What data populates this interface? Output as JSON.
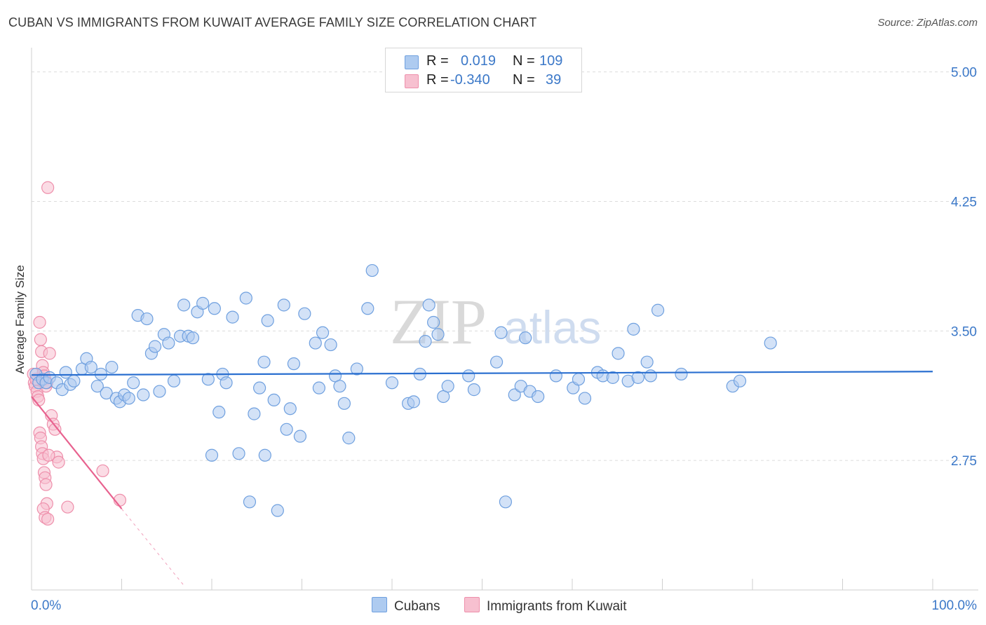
{
  "title": "CUBAN VS IMMIGRANTS FROM KUWAIT AVERAGE FAMILY SIZE CORRELATION CHART",
  "source": "Source: ZipAtlas.com",
  "watermark": {
    "zip": "ZIP",
    "atlas": "atlas"
  },
  "colors": {
    "blue_fill": "#aecbf0",
    "blue_stroke": "#6fa0df",
    "blue_line": "#2a6fd0",
    "pink_fill": "#f7c0d0",
    "pink_stroke": "#ee8fab",
    "pink_line": "#e8628f",
    "axis_text": "#3b78c8",
    "grid": "#dcdcdc"
  },
  "legend": {
    "rows": [
      {
        "r_label": "R =",
        "r_value": "0.019",
        "n_label": "N =",
        "n_value": "109"
      },
      {
        "r_label": "R =",
        "r_value": "-0.340",
        "n_label": "N =",
        "n_value": "39"
      }
    ]
  },
  "bottom_legend": {
    "cubans": "Cubans",
    "kuwait": "Immigrants from Kuwait"
  },
  "chart_data": {
    "type": "scatter",
    "title": "CUBAN VS IMMIGRANTS FROM KUWAIT AVERAGE FAMILY SIZE CORRELATION CHART",
    "xlabel": "",
    "ylabel": "Average Family Size",
    "xlim": [
      0,
      100
    ],
    "ylim": [
      2.0,
      5.1
    ],
    "x_tick_labels": {
      "left": "0.0%",
      "right": "100.0%"
    },
    "y_ticks": [
      {
        "value": 5.0,
        "label": "5.00"
      },
      {
        "value": 4.25,
        "label": "4.25"
      },
      {
        "value": 3.5,
        "label": "3.50"
      },
      {
        "value": 2.75,
        "label": "2.75"
      }
    ],
    "series": [
      {
        "name": "Cubans",
        "r": 0.019,
        "n": 109,
        "trend": {
          "x": [
            0,
            100
          ],
          "y": [
            3.245,
            3.265
          ]
        },
        "points": [
          [
            0.5,
            3.25
          ],
          [
            0.8,
            3.2
          ],
          [
            1.2,
            3.22
          ],
          [
            1.6,
            3.2
          ],
          [
            2.0,
            3.23
          ],
          [
            2.8,
            3.2
          ],
          [
            3.4,
            3.16
          ],
          [
            3.8,
            3.26
          ],
          [
            4.3,
            3.19
          ],
          [
            4.7,
            3.21
          ],
          [
            5.6,
            3.28
          ],
          [
            6.1,
            3.34
          ],
          [
            6.6,
            3.29
          ],
          [
            7.3,
            3.18
          ],
          [
            7.7,
            3.25
          ],
          [
            8.3,
            3.14
          ],
          [
            8.9,
            3.29
          ],
          [
            9.4,
            3.11
          ],
          [
            9.8,
            3.09
          ],
          [
            10.3,
            3.13
          ],
          [
            10.8,
            3.11
          ],
          [
            11.3,
            3.2
          ],
          [
            11.8,
            3.59
          ],
          [
            12.4,
            3.13
          ],
          [
            12.8,
            3.57
          ],
          [
            13.3,
            3.37
          ],
          [
            13.7,
            3.41
          ],
          [
            14.2,
            3.15
          ],
          [
            14.7,
            3.48
          ],
          [
            15.2,
            3.43
          ],
          [
            15.8,
            3.21
          ],
          [
            16.5,
            3.47
          ],
          [
            16.9,
            3.65
          ],
          [
            17.4,
            3.47
          ],
          [
            17.9,
            3.46
          ],
          [
            18.4,
            3.61
          ],
          [
            19.0,
            3.66
          ],
          [
            19.6,
            3.22
          ],
          [
            20.3,
            3.63
          ],
          [
            20.8,
            3.03
          ],
          [
            21.2,
            3.25
          ],
          [
            21.6,
            3.2
          ],
          [
            22.3,
            3.58
          ],
          [
            23.0,
            2.79
          ],
          [
            23.8,
            3.69
          ],
          [
            24.2,
            2.51
          ],
          [
            24.7,
            3.02
          ],
          [
            25.3,
            3.17
          ],
          [
            25.8,
            3.32
          ],
          [
            26.2,
            3.56
          ],
          [
            26.9,
            3.1
          ],
          [
            27.3,
            2.46
          ],
          [
            28.0,
            3.65
          ],
          [
            28.3,
            2.93
          ],
          [
            28.7,
            3.05
          ],
          [
            29.1,
            3.31
          ],
          [
            29.8,
            2.89
          ],
          [
            30.3,
            3.6
          ],
          [
            31.5,
            3.43
          ],
          [
            31.9,
            3.17
          ],
          [
            32.3,
            3.49
          ],
          [
            33.2,
            3.42
          ],
          [
            33.7,
            3.24
          ],
          [
            34.2,
            3.18
          ],
          [
            34.7,
            3.08
          ],
          [
            35.2,
            2.88
          ],
          [
            36.1,
            3.28
          ],
          [
            37.3,
            3.63
          ],
          [
            37.8,
            3.85
          ],
          [
            40.0,
            3.2
          ],
          [
            41.8,
            3.08
          ],
          [
            42.4,
            3.09
          ],
          [
            43.1,
            3.25
          ],
          [
            43.7,
            3.44
          ],
          [
            44.1,
            3.65
          ],
          [
            44.6,
            3.55
          ],
          [
            45.1,
            3.48
          ],
          [
            45.7,
            3.12
          ],
          [
            46.2,
            3.18
          ],
          [
            48.5,
            3.24
          ],
          [
            49.1,
            3.16
          ],
          [
            51.6,
            3.32
          ],
          [
            52.1,
            3.49
          ],
          [
            53.6,
            3.13
          ],
          [
            54.3,
            3.18
          ],
          [
            54.8,
            3.46
          ],
          [
            55.3,
            3.15
          ],
          [
            56.2,
            3.12
          ],
          [
            58.2,
            3.24
          ],
          [
            60.1,
            3.17
          ],
          [
            60.7,
            3.22
          ],
          [
            61.4,
            3.11
          ],
          [
            62.8,
            3.26
          ],
          [
            63.4,
            3.24
          ],
          [
            64.5,
            3.23
          ],
          [
            65.1,
            3.37
          ],
          [
            66.2,
            3.21
          ],
          [
            66.8,
            3.51
          ],
          [
            67.3,
            3.23
          ],
          [
            68.3,
            3.32
          ],
          [
            68.7,
            3.24
          ],
          [
            69.5,
            3.62
          ],
          [
            72.1,
            3.25
          ],
          [
            77.8,
            3.18
          ],
          [
            78.6,
            3.21
          ],
          [
            82.0,
            3.43
          ],
          [
            52.6,
            2.51
          ],
          [
            20.0,
            2.78
          ],
          [
            25.9,
            2.78
          ]
        ]
      },
      {
        "name": "Immigrants from Kuwait",
        "r": -0.34,
        "n": 39,
        "trend": {
          "x": [
            0,
            10
          ],
          "y": [
            3.12,
            2.47
          ]
        },
        "trend_dashed": {
          "x": [
            10,
            17
          ],
          "y": [
            2.47,
            2.02
          ]
        },
        "points": [
          [
            0.2,
            3.25
          ],
          [
            0.3,
            3.2
          ],
          [
            0.4,
            3.18
          ],
          [
            0.5,
            3.22
          ],
          [
            0.6,
            3.15
          ],
          [
            0.7,
            3.12
          ],
          [
            0.8,
            3.1
          ],
          [
            0.9,
            3.55
          ],
          [
            1.0,
            3.45
          ],
          [
            1.1,
            3.38
          ],
          [
            1.2,
            3.3
          ],
          [
            1.3,
            3.26
          ],
          [
            1.4,
            3.24
          ],
          [
            1.5,
            3.22
          ],
          [
            1.6,
            3.18
          ],
          [
            1.7,
            3.2
          ],
          [
            0.9,
            2.91
          ],
          [
            1.0,
            2.88
          ],
          [
            1.1,
            2.83
          ],
          [
            1.2,
            2.79
          ],
          [
            1.3,
            2.76
          ],
          [
            1.4,
            2.68
          ],
          [
            1.5,
            2.65
          ],
          [
            1.6,
            2.61
          ],
          [
            1.7,
            2.5
          ],
          [
            1.3,
            2.47
          ],
          [
            1.5,
            2.42
          ],
          [
            1.8,
            2.41
          ],
          [
            2.0,
            3.37
          ],
          [
            2.2,
            3.01
          ],
          [
            2.4,
            2.96
          ],
          [
            2.6,
            2.93
          ],
          [
            2.8,
            2.77
          ],
          [
            3.0,
            2.74
          ],
          [
            1.9,
            2.78
          ],
          [
            7.9,
            2.69
          ],
          [
            9.8,
            2.52
          ],
          [
            4.0,
            2.48
          ],
          [
            1.8,
            4.33
          ]
        ]
      }
    ]
  }
}
